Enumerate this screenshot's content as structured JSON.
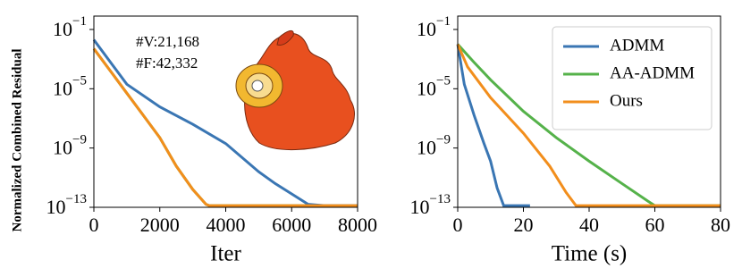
{
  "chart_data": [
    {
      "type": "line",
      "ylabel": "Normalized Combined Residual",
      "xlabel": "Iter",
      "log_y": true,
      "xlim": [
        0,
        8000
      ],
      "xticks": [
        0,
        2000,
        4000,
        6000,
        8000
      ],
      "ylim": [
        1e-13,
        0.8
      ],
      "yticks": [
        {
          "value": 0.1,
          "label": "10−1"
        },
        {
          "value": 1e-05,
          "label": "10−5"
        },
        {
          "value": 1e-09,
          "label": "10−9"
        },
        {
          "value": 1e-13,
          "label": "10−13"
        }
      ],
      "annotations": [
        "#V:21,168",
        "#F:42,332"
      ],
      "series": [
        {
          "name": "AA-ADMM",
          "color": "#55b24a",
          "x": [
            0,
            500,
            1000,
            1500,
            2000,
            2500,
            3000,
            3400,
            3500,
            8000
          ],
          "values": [
            0.005,
            0.00016,
            5e-06,
            1.6e-07,
            5e-09,
            6e-11,
            1.6e-12,
            1.6e-13,
            1.3e-13,
            1.3e-13
          ]
        },
        {
          "name": "ADMM",
          "color": "#3a76b3",
          "x": [
            0,
            1000,
            2000,
            3000,
            4000,
            5000,
            5500,
            6000,
            6500,
            7000,
            8000
          ],
          "values": [
            0.02,
            2e-05,
            6e-07,
            4e-08,
            2e-09,
            2.5e-11,
            4e-12,
            8e-13,
            1.6e-13,
            1.3e-13,
            1.3e-13
          ]
        },
        {
          "name": "Ours",
          "color": "#f28e1c",
          "x": [
            0,
            500,
            1000,
            1500,
            2000,
            2500,
            3000,
            3400,
            3500,
            8000
          ],
          "values": [
            0.005,
            0.00016,
            5e-06,
            1.6e-07,
            5e-09,
            6e-11,
            1.6e-12,
            1.6e-13,
            1.3e-13,
            1.3e-13
          ]
        }
      ]
    },
    {
      "type": "line",
      "xlabel": "Time (s)",
      "log_y": true,
      "legend": "upper-right",
      "xlim": [
        0,
        80
      ],
      "xticks": [
        0,
        20,
        40,
        60,
        80
      ],
      "ylim": [
        1e-13,
        0.8
      ],
      "yticks": [
        {
          "value": 0.1,
          "label": "10−1"
        },
        {
          "value": 1e-05,
          "label": "10−5"
        },
        {
          "value": 1e-09,
          "label": "10−9"
        },
        {
          "value": 1e-13,
          "label": "10−13"
        }
      ],
      "series": [
        {
          "name": "ADMM",
          "color": "#3a76b3",
          "x": [
            0,
            2,
            5,
            8,
            10,
            12,
            14,
            22
          ],
          "values": [
            0.01,
            2e-05,
            1.6e-07,
            2e-09,
            1.3e-10,
            2e-12,
            1.3e-13,
            1.3e-13
          ]
        },
        {
          "name": "AA-ADMM",
          "color": "#55b24a",
          "x": [
            0,
            5,
            10,
            20,
            30,
            40,
            50,
            58,
            60,
            80
          ],
          "values": [
            0.01,
            0.0006,
            4e-05,
            3e-07,
            5e-09,
            1.3e-10,
            4e-12,
            2.5e-13,
            1.3e-13,
            1.3e-13
          ]
        },
        {
          "name": "Ours",
          "color": "#f28e1c",
          "x": [
            0,
            3,
            10,
            20,
            28,
            33,
            36,
            80
          ],
          "values": [
            0.01,
            0.0003,
            2.5e-06,
            1e-08,
            6e-11,
            1e-12,
            1.3e-13,
            1.3e-13
          ]
        }
      ]
    }
  ]
}
